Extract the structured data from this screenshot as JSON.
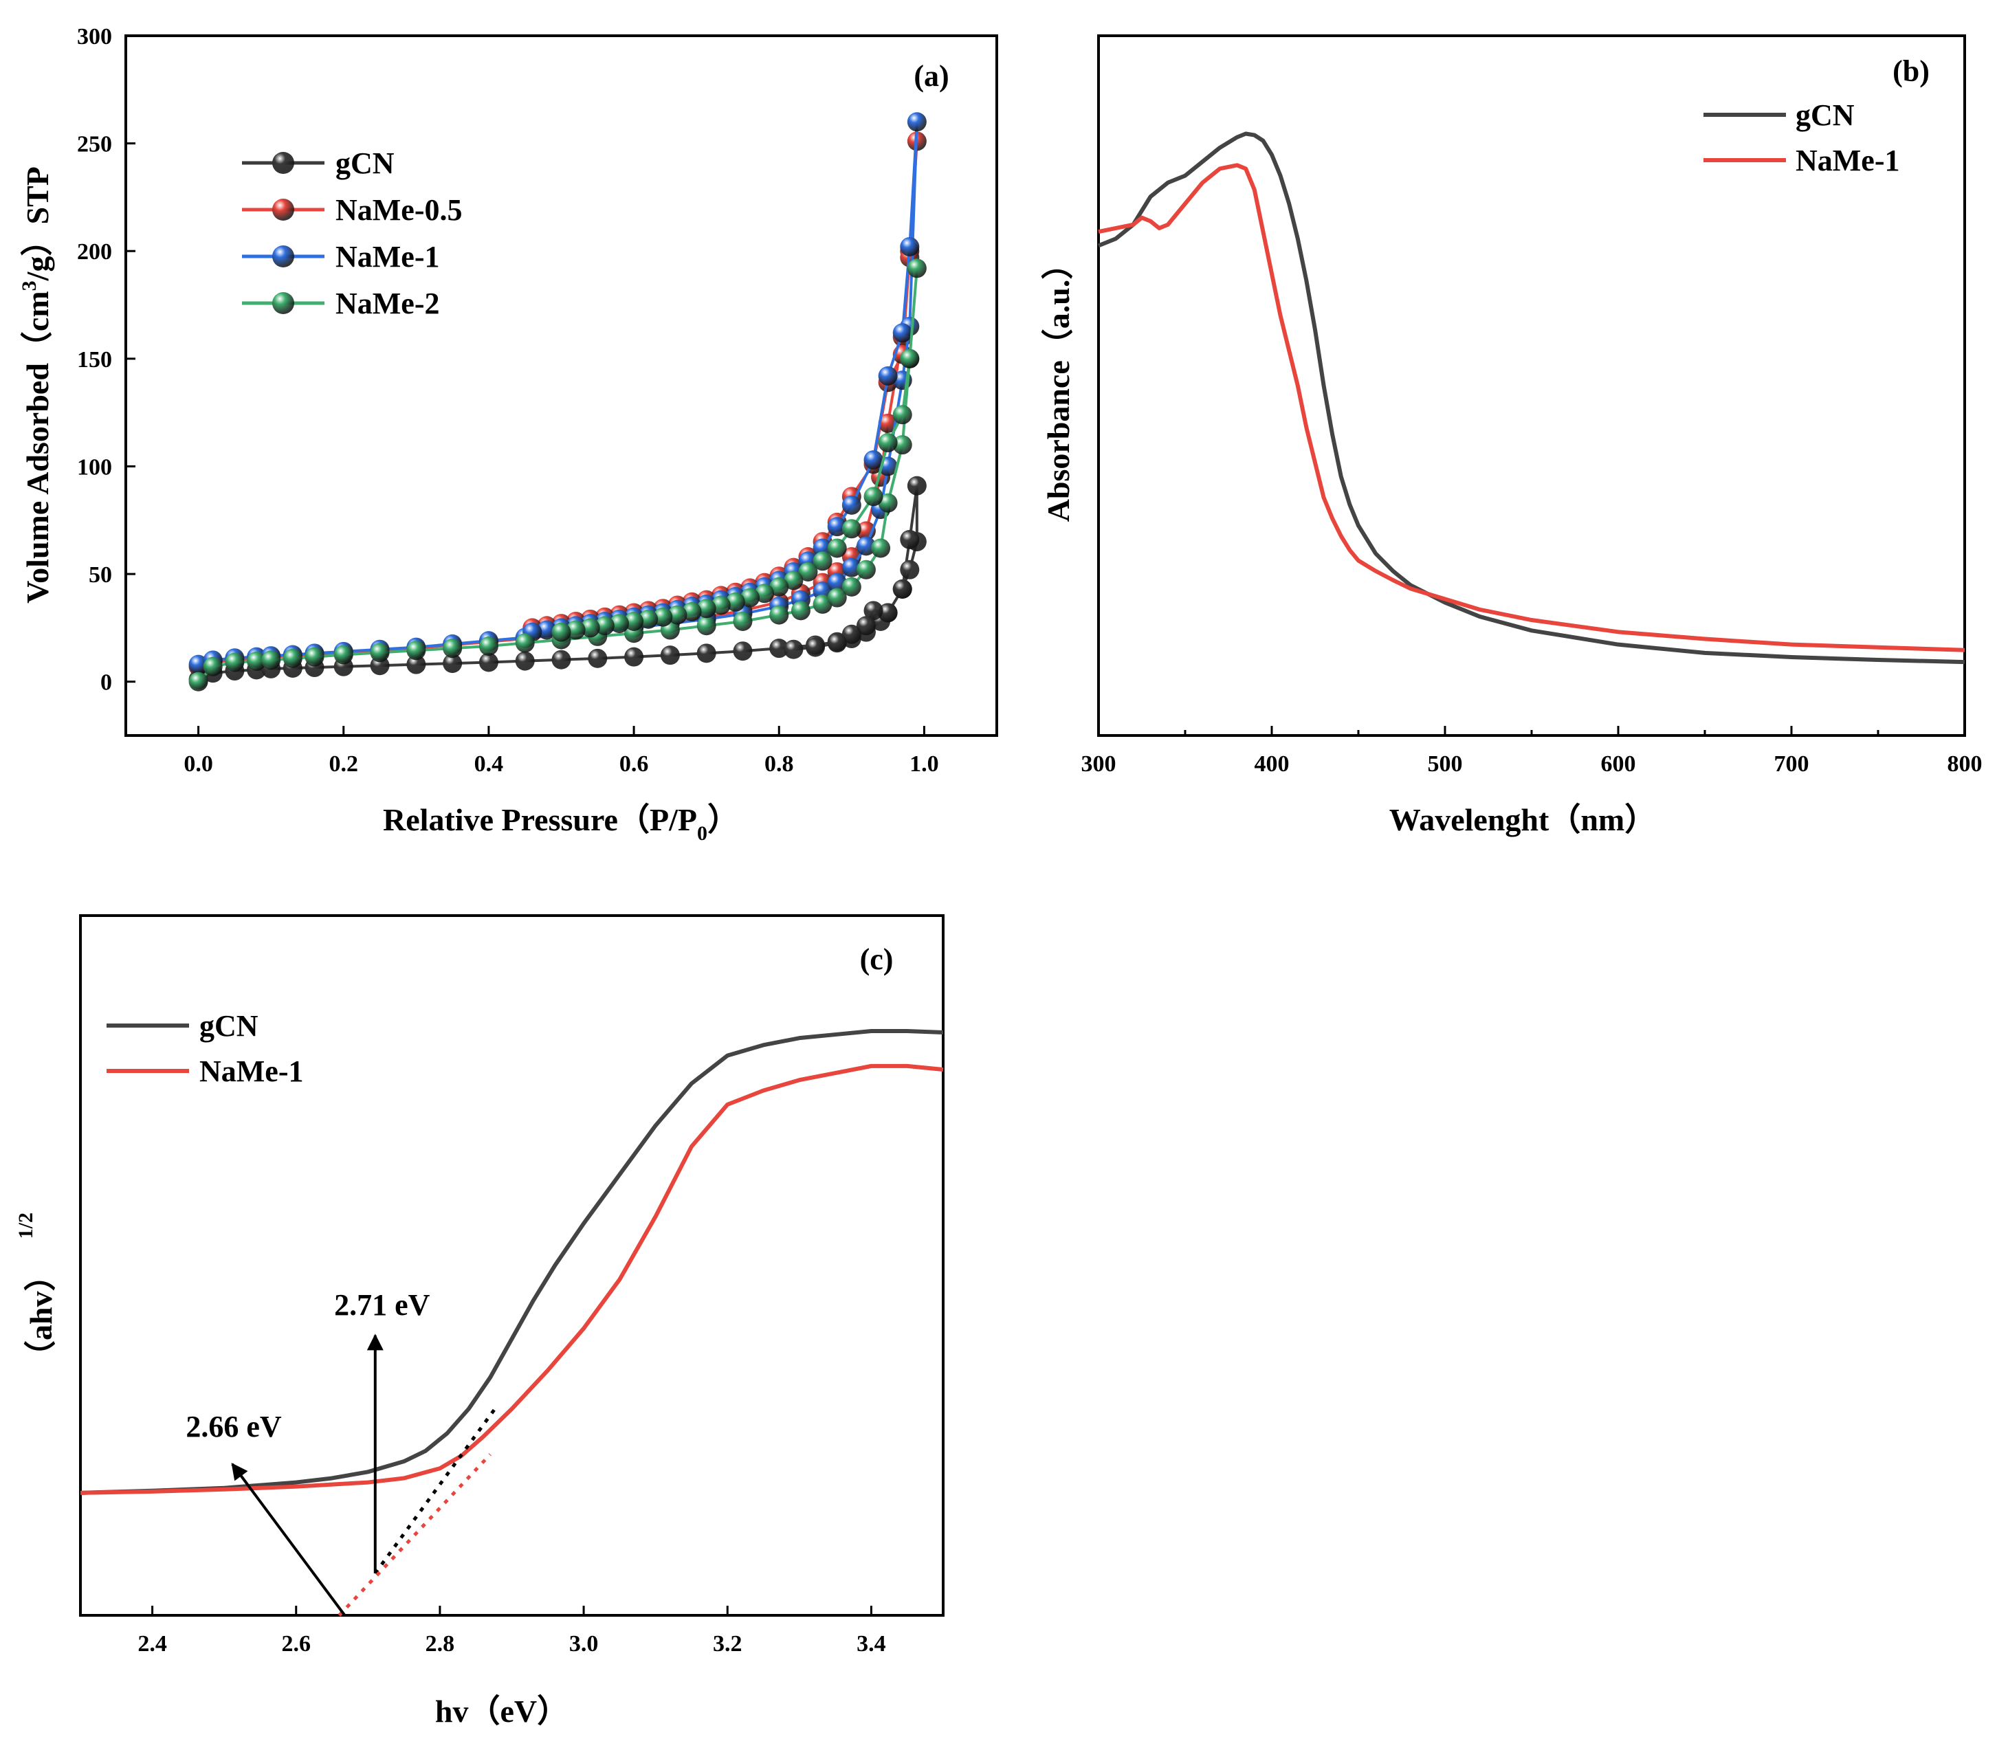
{
  "chart_data": [
    {
      "panel": "(a)",
      "type": "line",
      "xlabel": "Relative Pressure（P/P0）",
      "xlabel_main": "Relative Pressure（P/P",
      "xlabel_sub": "0",
      "xlabel_end": "）",
      "ylabel": "Volume Adsorbed（cm3/g）STP",
      "ylabel_pre": "Volume Adsorbed（cm",
      "ylabel_sup": "3",
      "ylabel_post": "/g）STP",
      "xlim": [
        -0.1,
        1.1
      ],
      "ylim": [
        -25,
        300
      ],
      "xticks": [
        "0.0",
        "0.2",
        "0.4",
        "0.6",
        "0.8",
        "1.0"
      ],
      "yticks": [
        "0",
        "50",
        "100",
        "150",
        "200",
        "250",
        "300"
      ],
      "legend_position": "upper-left",
      "marker": "sphere",
      "series": [
        {
          "name": "gCN",
          "color": "#3b3b3b",
          "x": [
            0.0,
            0.02,
            0.05,
            0.08,
            0.1,
            0.13,
            0.16,
            0.2,
            0.25,
            0.3,
            0.35,
            0.4,
            0.45,
            0.5,
            0.55,
            0.6,
            0.65,
            0.7,
            0.75,
            0.8,
            0.85,
            0.88,
            0.9,
            0.92,
            0.94,
            0.95,
            0.97,
            0.98,
            0.99
          ],
          "y": [
            1,
            4,
            5,
            5.5,
            6,
            6.3,
            6.6,
            7,
            7.5,
            8,
            8.5,
            9,
            9.6,
            10.2,
            10.8,
            11.5,
            12.3,
            13.2,
            14.2,
            15.5,
            17,
            18.5,
            20,
            23,
            28,
            32,
            43,
            52,
            65
          ],
          "x_des": [
            0.99,
            0.98,
            0.97,
            0.95,
            0.93,
            0.92,
            0.9,
            0.88,
            0.85,
            0.82
          ],
          "y_des": [
            91,
            66,
            43,
            32,
            33,
            26,
            22,
            18,
            16,
            15
          ]
        },
        {
          "name": "NaMe-0.5",
          "color": "#e8453c",
          "x": [
            0.0,
            0.02,
            0.05,
            0.08,
            0.1,
            0.13,
            0.16,
            0.2,
            0.25,
            0.3,
            0.35,
            0.4,
            0.45,
            0.5,
            0.55,
            0.6,
            0.65,
            0.7,
            0.75,
            0.8,
            0.83,
            0.86,
            0.88,
            0.9,
            0.92,
            0.94,
            0.95,
            0.97,
            0.98,
            0.99
          ],
          "y": [
            7,
            9,
            10,
            11,
            11.5,
            12,
            12.8,
            13.5,
            14.5,
            15.5,
            17,
            18.5,
            20,
            22,
            23.5,
            25.5,
            28,
            30,
            33,
            37,
            41,
            46,
            51,
            58,
            70,
            95,
            120,
            160,
            200,
            251
          ],
          "x_des": [
            0.98,
            0.97,
            0.95,
            0.93,
            0.9,
            0.88,
            0.86,
            0.84,
            0.82,
            0.8,
            0.78,
            0.76,
            0.74,
            0.72,
            0.7,
            0.68,
            0.66,
            0.64,
            0.62,
            0.6,
            0.58,
            0.56,
            0.54,
            0.52,
            0.5,
            0.48,
            0.46
          ],
          "y_des": [
            197,
            152,
            139,
            101,
            86,
            74,
            65,
            58,
            53,
            49,
            46,
            43.5,
            41.5,
            40,
            38,
            37,
            35.5,
            34,
            33,
            32,
            31,
            30,
            29,
            28,
            27,
            26,
            25
          ]
        },
        {
          "name": "NaMe-1",
          "color": "#2f6fe0",
          "x": [
            0.0,
            0.02,
            0.05,
            0.08,
            0.1,
            0.13,
            0.16,
            0.2,
            0.25,
            0.3,
            0.35,
            0.4,
            0.45,
            0.5,
            0.55,
            0.6,
            0.65,
            0.7,
            0.75,
            0.8,
            0.83,
            0.86,
            0.88,
            0.9,
            0.92,
            0.94,
            0.95,
            0.97,
            0.98,
            0.99
          ],
          "y": [
            8,
            10,
            11,
            11.5,
            12,
            12.5,
            13.2,
            14,
            15,
            16,
            17.5,
            19,
            20.5,
            22,
            23.5,
            25,
            27,
            29,
            31.5,
            35,
            38,
            42,
            46,
            53,
            63,
            80,
            100,
            140,
            165,
            260
          ],
          "x_des": [
            0.98,
            0.97,
            0.95,
            0.93,
            0.9,
            0.88,
            0.86,
            0.84,
            0.82,
            0.8,
            0.78,
            0.76,
            0.74,
            0.72,
            0.7,
            0.68,
            0.66,
            0.64,
            0.62,
            0.6,
            0.58,
            0.56,
            0.54,
            0.52,
            0.5,
            0.48,
            0.46
          ],
          "y_des": [
            202,
            162,
            142,
            103,
            82,
            72,
            62,
            56,
            51,
            47,
            44,
            41.5,
            39.5,
            38,
            36,
            35,
            33.5,
            32,
            31,
            30,
            29,
            28,
            27,
            26,
            25,
            24,
            23
          ]
        },
        {
          "name": "NaMe-2",
          "color": "#3fae6e",
          "x": [
            0.0,
            0.02,
            0.05,
            0.08,
            0.1,
            0.13,
            0.16,
            0.2,
            0.25,
            0.3,
            0.35,
            0.4,
            0.45,
            0.5,
            0.55,
            0.6,
            0.65,
            0.7,
            0.75,
            0.8,
            0.83,
            0.86,
            0.88,
            0.9,
            0.92,
            0.94,
            0.95,
            0.97,
            0.98,
            0.99
          ],
          "y": [
            0,
            7,
            9,
            9.5,
            10,
            10.8,
            11.5,
            12.5,
            13.5,
            14.5,
            15.5,
            16.5,
            18,
            19.5,
            21,
            22.5,
            24,
            26,
            28,
            31,
            33,
            36,
            39,
            44,
            52,
            62,
            83,
            110,
            150,
            192
          ],
          "x_des": [
            0.98,
            0.97,
            0.95,
            0.93,
            0.9,
            0.88,
            0.86,
            0.84,
            0.82,
            0.8,
            0.78,
            0.76,
            0.74,
            0.72,
            0.7,
            0.68,
            0.66,
            0.64,
            0.62,
            0.6,
            0.58,
            0.56,
            0.54,
            0.52,
            0.5
          ],
          "y_des": [
            150,
            124,
            111,
            86,
            71,
            62,
            56,
            51,
            47,
            44,
            41,
            39,
            37,
            35.5,
            34,
            32.5,
            31,
            30,
            29,
            28,
            27,
            26,
            25,
            24,
            23
          ]
        }
      ]
    },
    {
      "panel": "(b)",
      "type": "line",
      "xlabel": "Wavelenght（nm）",
      "ylabel": "Absorbance（a.u.）",
      "xlim": [
        300,
        800
      ],
      "ylim": [
        0,
        1
      ],
      "xticks": [
        "300",
        "400",
        "500",
        "600",
        "700",
        "800"
      ],
      "yticks": [],
      "legend_position": "upper-right",
      "series": [
        {
          "name": "gCN",
          "color": "#444444",
          "x": [
            300,
            310,
            320,
            330,
            340,
            350,
            360,
            370,
            380,
            385,
            390,
            395,
            400,
            405,
            410,
            415,
            420,
            425,
            430,
            435,
            440,
            445,
            450,
            460,
            470,
            480,
            500,
            520,
            550,
            600,
            650,
            700,
            750,
            800
          ],
          "y": [
            0.7,
            0.71,
            0.73,
            0.77,
            0.79,
            0.8,
            0.82,
            0.84,
            0.855,
            0.86,
            0.858,
            0.85,
            0.83,
            0.8,
            0.76,
            0.71,
            0.65,
            0.58,
            0.5,
            0.43,
            0.37,
            0.33,
            0.3,
            0.26,
            0.235,
            0.215,
            0.19,
            0.17,
            0.15,
            0.13,
            0.118,
            0.112,
            0.108,
            0.105
          ]
        },
        {
          "name": "NaMe-1",
          "color": "#e8453c",
          "x": [
            300,
            310,
            320,
            325,
            330,
            335,
            340,
            345,
            350,
            360,
            370,
            380,
            385,
            390,
            395,
            400,
            405,
            410,
            415,
            420,
            425,
            430,
            435,
            440,
            445,
            450,
            460,
            470,
            480,
            500,
            520,
            550,
            600,
            650,
            700,
            750,
            800
          ],
          "y": [
            0.72,
            0.725,
            0.73,
            0.74,
            0.735,
            0.725,
            0.73,
            0.745,
            0.76,
            0.79,
            0.81,
            0.815,
            0.81,
            0.78,
            0.72,
            0.66,
            0.6,
            0.55,
            0.5,
            0.44,
            0.39,
            0.34,
            0.31,
            0.285,
            0.265,
            0.25,
            0.235,
            0.222,
            0.21,
            0.195,
            0.18,
            0.165,
            0.148,
            0.138,
            0.13,
            0.126,
            0.122
          ]
        }
      ]
    },
    {
      "panel": "(c)",
      "type": "line",
      "xlabel": "hv（eV）",
      "ylabel": "（ahv）1/2",
      "ylabel_main": "（ahv）",
      "ylabel_sup": "1/2",
      "xlim": [
        2.3,
        3.5
      ],
      "ylim": [
        0,
        1
      ],
      "xticks": [
        "2.4",
        "2.6",
        "2.8",
        "3.0",
        "3.2",
        "3.4"
      ],
      "yticks": [],
      "legend_position": "upper-left",
      "series": [
        {
          "name": "gCN",
          "color": "#444444",
          "x": [
            2.3,
            2.4,
            2.5,
            2.6,
            2.65,
            2.7,
            2.75,
            2.78,
            2.81,
            2.84,
            2.87,
            2.9,
            2.93,
            2.96,
            3.0,
            3.05,
            3.1,
            3.15,
            3.2,
            3.25,
            3.3,
            3.35,
            3.4,
            3.45,
            3.5
          ],
          "y": [
            0.175,
            0.178,
            0.182,
            0.19,
            0.196,
            0.205,
            0.22,
            0.235,
            0.26,
            0.295,
            0.34,
            0.395,
            0.45,
            0.5,
            0.56,
            0.63,
            0.7,
            0.76,
            0.8,
            0.815,
            0.825,
            0.83,
            0.835,
            0.835,
            0.833
          ]
        },
        {
          "name": "NaMe-1",
          "color": "#e8453c",
          "x": [
            2.3,
            2.4,
            2.5,
            2.6,
            2.65,
            2.7,
            2.75,
            2.8,
            2.83,
            2.86,
            2.9,
            2.95,
            3.0,
            3.05,
            3.1,
            3.15,
            3.2,
            3.25,
            3.3,
            3.35,
            3.4,
            3.45,
            3.5
          ],
          "y": [
            0.175,
            0.177,
            0.18,
            0.184,
            0.187,
            0.19,
            0.196,
            0.21,
            0.228,
            0.255,
            0.295,
            0.35,
            0.41,
            0.48,
            0.57,
            0.67,
            0.73,
            0.75,
            0.765,
            0.775,
            0.785,
            0.785,
            0.78
          ]
        }
      ],
      "tangents": [
        {
          "series": "gCN",
          "color": "#000000",
          "from": [
            2.71,
            0.06
          ],
          "to": [
            2.88,
            0.3
          ]
        },
        {
          "series": "NaMe-1",
          "color": "#e8453c",
          "from": [
            2.66,
            0.0
          ],
          "to": [
            2.87,
            0.23
          ]
        }
      ],
      "annotations": [
        {
          "text": "2.71 eV",
          "x": 2.71,
          "y_from": 0.06,
          "y_to": 0.4
        },
        {
          "text": "2.66 eV",
          "x": 2.66,
          "y_from": 0.06,
          "y_to": 0.34
        }
      ]
    }
  ]
}
